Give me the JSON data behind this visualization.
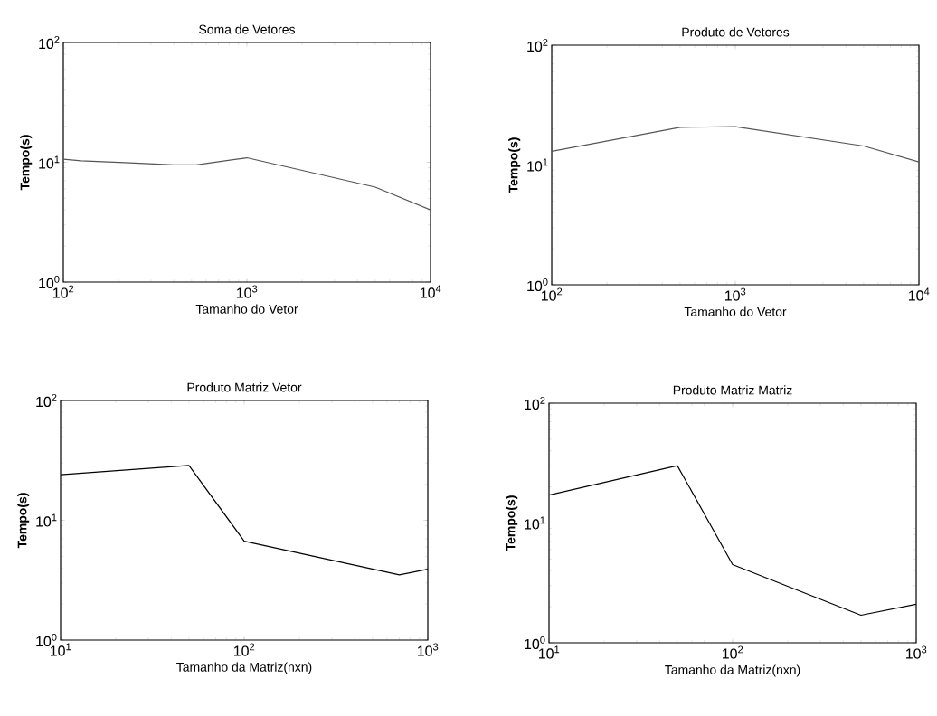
{
  "chart_data": [
    {
      "type": "line",
      "title": "Soma de Vetores",
      "xlabel": "Tamanho do Vetor",
      "ylabel": "Tempo(s)",
      "log": "xy",
      "color": "#555555",
      "x": [
        100,
        125,
        230,
        400,
        530,
        1000,
        5000,
        10000
      ],
      "values": [
        10.6,
        10.3,
        9.9,
        9.5,
        9.5,
        10.9,
        6.2,
        4.0
      ],
      "xlim": [
        100,
        10000
      ],
      "ylim": [
        1,
        100
      ],
      "xticks": [
        {
          "value": 100,
          "label": "10$^{2}$"
        },
        {
          "value": 1000,
          "label": "10$^{3}$"
        },
        {
          "value": 10000,
          "label": "10$^{4}$"
        }
      ],
      "yticks": [
        {
          "value": 1,
          "label": "10$^{0}$"
        },
        {
          "value": 10,
          "label": "10$^{1}$"
        },
        {
          "value": 100,
          "label": "10$^{2}$"
        }
      ]
    },
    {
      "type": "line",
      "title": "Produto de Vetores",
      "xlabel": "Tamanho do Vetor",
      "ylabel": "Tempo(s)",
      "log": "xy",
      "color": "#555555",
      "x": [
        100,
        500,
        1000,
        5000,
        10000
      ],
      "values": [
        13.0,
        20.6,
        20.9,
        14.4,
        10.6
      ],
      "xlim": [
        100,
        10000
      ],
      "ylim": [
        1,
        100
      ],
      "xticks": [
        {
          "value": 100,
          "label": "10$^{2}$"
        },
        {
          "value": 1000,
          "label": "10$^{3}$"
        },
        {
          "value": 10000,
          "label": "10$^{4}$"
        }
      ],
      "yticks": [
        {
          "value": 1,
          "label": "10$^{0}$"
        },
        {
          "value": 10,
          "label": "10$^{1}$"
        },
        {
          "value": 100,
          "label": "10$^{2}$"
        }
      ]
    },
    {
      "type": "line",
      "title": "Produto Matriz Vetor",
      "xlabel": "Tamanho da Matriz(nxn)",
      "ylabel": "Tempo(s)",
      "log": "xy",
      "color": "#000000",
      "x": [
        10,
        50,
        100,
        700,
        1000
      ],
      "values": [
        24.0,
        28.7,
        6.7,
        3.5,
        3.9
      ],
      "xlim": [
        10,
        1000
      ],
      "ylim": [
        1,
        100
      ],
      "xticks": [
        {
          "value": 10,
          "label": "10$^{1}$"
        },
        {
          "value": 100,
          "label": "10$^{2}$"
        },
        {
          "value": 1000,
          "label": "10$^{3}$"
        }
      ],
      "yticks": [
        {
          "value": 1,
          "label": "10$^{0}$"
        },
        {
          "value": 10,
          "label": "10$^{1}$"
        },
        {
          "value": 100,
          "label": "10$^{2}$"
        }
      ]
    },
    {
      "type": "line",
      "title": "Produto Matriz Matriz",
      "xlabel": "Tamanho da Matriz(nxn)",
      "ylabel": "Tempo(s)",
      "log": "xy",
      "color": "#000000",
      "x": [
        10,
        50,
        100,
        500,
        1000
      ],
      "values": [
        17.1,
        30.1,
        4.5,
        1.7,
        2.1
      ],
      "xlim": [
        10,
        1000
      ],
      "ylim": [
        1,
        100
      ],
      "xticks": [
        {
          "value": 10,
          "label": "10$^{1}$"
        },
        {
          "value": 100,
          "label": "10$^{2}$"
        },
        {
          "value": 1000,
          "label": "10$^{3}$"
        }
      ],
      "yticks": [
        {
          "value": 1,
          "label": "10$^{0}$"
        },
        {
          "value": 10,
          "label": "10$^{1}$"
        },
        {
          "value": 100,
          "label": "10$^{2}$"
        }
      ]
    }
  ]
}
